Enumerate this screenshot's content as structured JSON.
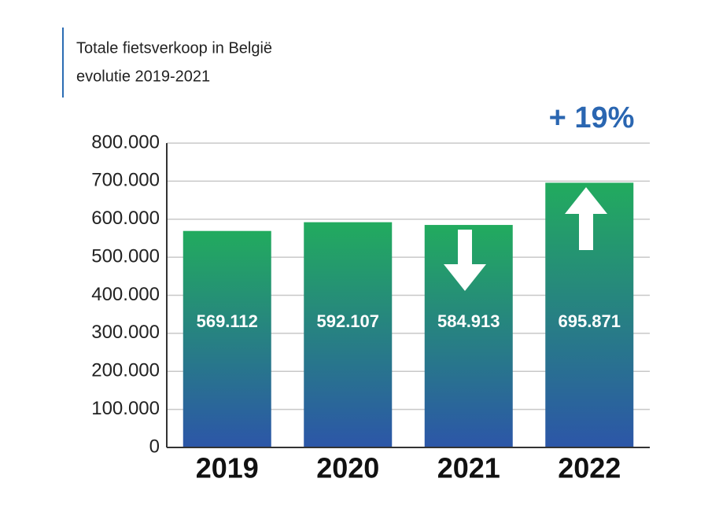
{
  "chart_data": {
    "type": "bar",
    "title": "Totale fietsverkoop in België",
    "subtitle": "evolutie 2019-2021",
    "annotation": "+ 19%",
    "categories": [
      "2019",
      "2020",
      "2021",
      "2022"
    ],
    "values": [
      569112,
      592107,
      584913,
      695871
    ],
    "value_labels": [
      "569.112",
      "592.107",
      "584.913",
      "695.871"
    ],
    "gradient": [
      "#22ab5e",
      "#2c56a8"
    ],
    "ylim": [
      0,
      800000
    ],
    "yticks": [
      0,
      {
        "value": 100000,
        "label": "100.000"
      },
      {
        "value": 200000,
        "label": "200.000"
      },
      {
        "value": 300000,
        "label": "300.000"
      },
      {
        "value": 400000,
        "label": "400.000"
      },
      {
        "value": 500000,
        "label": "500.000"
      },
      {
        "value": 600000,
        "label": "600.000"
      },
      {
        "value": 700000,
        "label": "700.000"
      },
      {
        "value": 800000,
        "label": "800.000"
      }
    ],
    "grid": true
  }
}
